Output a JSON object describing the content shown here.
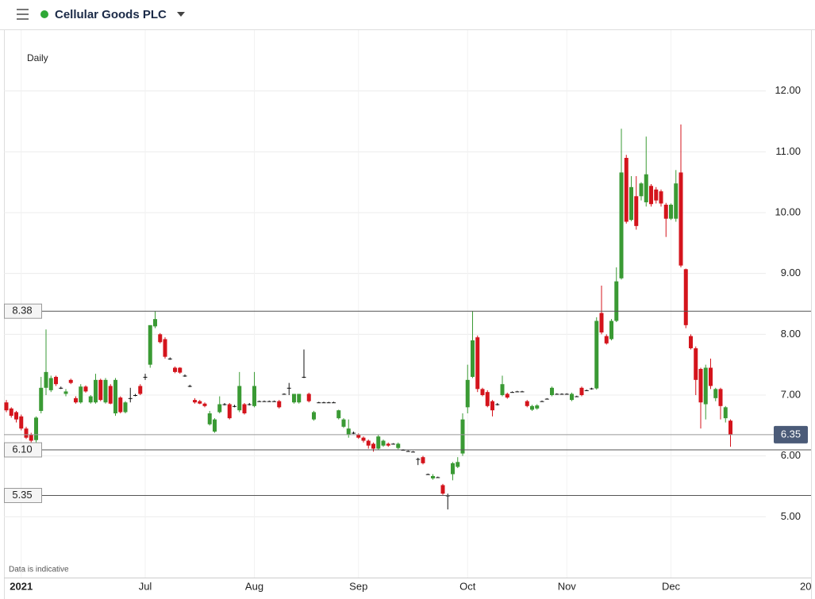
{
  "chart_data": {
    "type": "candlestick",
    "title": "Cellular Goods PLC",
    "interval": "Daily",
    "footnote": "Data is indicative",
    "next_axis_label": "20",
    "ylim": [
      4,
      13
    ],
    "yticks": [
      {
        "value": 5,
        "label": "5.00"
      },
      {
        "value": 6,
        "label": "6.00"
      },
      {
        "value": 7,
        "label": "7.00"
      },
      {
        "value": 8,
        "label": "8.00"
      },
      {
        "value": 9,
        "label": "9.00"
      },
      {
        "value": 10,
        "label": "10.00"
      },
      {
        "value": 11,
        "label": "11.00"
      },
      {
        "value": 12,
        "label": "12.00"
      }
    ],
    "grid": true,
    "up_color": "#3a9a34",
    "down_color": "#d4141c",
    "flat_color": "#111111",
    "reference_lines": [
      8.38,
      {
        "value": 6.1,
        "label": "6.10"
      },
      5.35
    ],
    "last_price": 6.35,
    "categories": [
      null,
      null,
      null,
      "2021",
      null,
      null,
      null,
      null,
      null,
      null,
      null,
      null,
      null,
      null,
      null,
      null,
      null,
      null,
      null,
      null,
      null,
      null,
      null,
      null,
      null,
      null,
      null,
      null,
      "Jul",
      null,
      null,
      null,
      null,
      null,
      null,
      null,
      null,
      null,
      null,
      null,
      null,
      null,
      null,
      null,
      null,
      null,
      null,
      null,
      null,
      null,
      "Aug",
      null,
      null,
      null,
      null,
      null,
      null,
      null,
      null,
      null,
      null,
      null,
      null,
      null,
      null,
      null,
      null,
      null,
      null,
      null,
      null,
      "Sep",
      null,
      null,
      null,
      null,
      null,
      null,
      null,
      null,
      null,
      null,
      null,
      null,
      null,
      null,
      null,
      null,
      null,
      null,
      null,
      null,
      null,
      "Oct",
      null,
      null,
      null,
      null,
      null,
      null,
      null,
      null,
      null,
      null,
      null,
      null,
      null,
      null,
      null,
      null,
      null,
      null,
      null,
      "Nov",
      null,
      null,
      null,
      null,
      null,
      null,
      null,
      null,
      null,
      null,
      null,
      null,
      null,
      null,
      null,
      null,
      null,
      null,
      null,
      null,
      "Dec",
      null,
      null,
      null,
      null,
      null,
      null,
      null,
      null,
      null,
      null,
      null,
      null
    ],
    "ohlc": [
      [
        6.88,
        6.92,
        6.72,
        6.75
      ],
      [
        6.78,
        6.8,
        6.63,
        6.66
      ],
      [
        6.72,
        6.74,
        6.55,
        6.6
      ],
      [
        6.65,
        6.68,
        6.42,
        6.45
      ],
      [
        6.45,
        6.48,
        6.28,
        6.3
      ],
      [
        6.35,
        6.38,
        6.22,
        6.25
      ],
      [
        6.26,
        6.65,
        6.22,
        6.63
      ],
      [
        6.74,
        7.3,
        6.7,
        7.12
      ],
      [
        7.12,
        8.08,
        7.0,
        7.38
      ],
      [
        7.08,
        7.32,
        7.05,
        7.28
      ],
      [
        7.3,
        7.32,
        7.15,
        7.18
      ],
      [
        7.12,
        7.14,
        7.1,
        7.12
      ],
      [
        7.02,
        7.1,
        6.98,
        7.06
      ],
      [
        7.25,
        7.27,
        7.18,
        7.2
      ],
      [
        6.95,
        6.98,
        6.86,
        6.88
      ],
      [
        6.88,
        7.18,
        6.86,
        7.14
      ],
      [
        7.14,
        7.16,
        7.04,
        7.06
      ],
      [
        6.88,
        7.0,
        6.86,
        6.98
      ],
      [
        6.88,
        7.35,
        6.86,
        7.25
      ],
      [
        7.25,
        7.27,
        6.9,
        6.92
      ],
      [
        6.88,
        7.28,
        6.86,
        7.25
      ],
      [
        7.15,
        7.18,
        6.85,
        6.86
      ],
      [
        6.7,
        7.28,
        6.66,
        7.25
      ],
      [
        6.96,
        6.98,
        6.7,
        6.72
      ],
      [
        6.72,
        6.9,
        6.7,
        6.88
      ],
      [
        6.95,
        7.12,
        6.88,
        6.95
      ],
      [
        7.0,
        7.02,
        6.98,
        7.0
      ],
      [
        7.15,
        7.18,
        7.0,
        7.02
      ],
      [
        7.3,
        7.35,
        7.25,
        7.3
      ],
      [
        7.5,
        8.15,
        7.45,
        8.15
      ],
      [
        8.13,
        8.38,
        8.1,
        8.25
      ],
      [
        8.0,
        8.02,
        7.85,
        7.87
      ],
      [
        7.92,
        7.95,
        7.6,
        7.63
      ],
      [
        7.6,
        7.62,
        7.58,
        7.6
      ],
      [
        7.45,
        7.47,
        7.36,
        7.38
      ],
      [
        7.45,
        7.46,
        7.35,
        7.37
      ],
      [
        7.32,
        7.34,
        7.3,
        7.32
      ],
      [
        7.15,
        7.17,
        7.13,
        7.15
      ],
      [
        6.92,
        6.95,
        6.86,
        6.88
      ],
      [
        6.9,
        6.92,
        6.85,
        6.86
      ],
      [
        6.86,
        6.88,
        6.8,
        6.82
      ],
      [
        6.52,
        6.74,
        6.5,
        6.7
      ],
      [
        6.4,
        6.62,
        6.38,
        6.6
      ],
      [
        6.72,
        6.98,
        6.7,
        6.85
      ],
      [
        6.85,
        6.87,
        6.83,
        6.85
      ],
      [
        6.85,
        6.87,
        6.6,
        6.62
      ],
      [
        6.82,
        6.84,
        6.8,
        6.82
      ],
      [
        6.75,
        7.38,
        6.72,
        7.15
      ],
      [
        6.85,
        6.87,
        6.68,
        6.7
      ],
      [
        6.85,
        6.87,
        6.83,
        6.85
      ],
      [
        6.82,
        7.38,
        6.8,
        7.15
      ],
      [
        6.9,
        6.91,
        6.89,
        6.9
      ],
      [
        6.9,
        6.91,
        6.89,
        6.9
      ],
      [
        6.9,
        6.91,
        6.89,
        6.9
      ],
      [
        6.9,
        6.91,
        6.89,
        6.9
      ],
      [
        6.9,
        6.92,
        6.78,
        6.8
      ],
      [
        7.02,
        7.03,
        7.01,
        7.02
      ],
      [
        7.12,
        7.2,
        7.0,
        7.12
      ],
      [
        6.88,
        7.02,
        6.86,
        7.02
      ],
      [
        6.88,
        7.02,
        6.86,
        7.02
      ],
      [
        7.3,
        7.75,
        7.28,
        7.3
      ],
      [
        7.02,
        7.04,
        6.88,
        6.9
      ],
      [
        6.6,
        6.74,
        6.58,
        6.72
      ],
      [
        6.88,
        6.89,
        6.87,
        6.88
      ],
      [
        6.88,
        6.89,
        6.87,
        6.88
      ],
      [
        6.88,
        6.89,
        6.87,
        6.88
      ],
      [
        6.88,
        6.89,
        6.87,
        6.88
      ],
      [
        6.62,
        6.76,
        6.6,
        6.75
      ],
      [
        6.48,
        6.62,
        6.46,
        6.6
      ],
      [
        6.35,
        6.6,
        6.3,
        6.45
      ],
      [
        6.38,
        6.4,
        6.36,
        6.38
      ],
      [
        6.35,
        6.37,
        6.28,
        6.3
      ],
      [
        6.3,
        6.32,
        6.22,
        6.25
      ],
      [
        6.25,
        6.27,
        6.12,
        6.17
      ],
      [
        6.2,
        6.22,
        6.07,
        6.12
      ],
      [
        6.12,
        6.35,
        6.1,
        6.32
      ],
      [
        6.17,
        6.27,
        6.15,
        6.25
      ],
      [
        6.2,
        6.22,
        6.15,
        6.17
      ],
      [
        6.2,
        6.21,
        6.19,
        6.2
      ],
      [
        6.13,
        6.22,
        6.11,
        6.2
      ],
      [
        6.1,
        6.11,
        6.09,
        6.1
      ],
      [
        6.08,
        6.09,
        6.07,
        6.08
      ],
      [
        6.07,
        6.08,
        6.06,
        6.07
      ],
      [
        5.95,
        5.97,
        5.85,
        5.95
      ],
      [
        5.98,
        6.0,
        5.86,
        5.88
      ],
      [
        5.7,
        5.71,
        5.69,
        5.7
      ],
      [
        5.63,
        5.7,
        5.61,
        5.67
      ],
      [
        5.65,
        5.66,
        5.64,
        5.65
      ],
      [
        5.52,
        5.54,
        5.36,
        5.38
      ],
      [
        5.35,
        5.38,
        5.12,
        5.35
      ],
      [
        5.7,
        5.9,
        5.6,
        5.88
      ],
      [
        5.82,
        5.98,
        5.8,
        5.9
      ],
      [
        6.04,
        6.7,
        6.0,
        6.6
      ],
      [
        6.8,
        7.5,
        6.7,
        7.25
      ],
      [
        7.3,
        8.38,
        7.28,
        7.9
      ],
      [
        7.95,
        7.98,
        7.05,
        7.1
      ],
      [
        7.1,
        7.12,
        6.98,
        7.0
      ],
      [
        7.05,
        7.08,
        6.8,
        6.82
      ],
      [
        6.9,
        6.92,
        6.65,
        6.75
      ],
      [
        6.85,
        6.87,
        6.83,
        6.85
      ],
      [
        7.0,
        7.32,
        6.98,
        7.18
      ],
      [
        7.02,
        7.04,
        6.94,
        6.96
      ],
      [
        7.05,
        7.06,
        7.04,
        7.05
      ],
      [
        7.06,
        7.07,
        7.05,
        7.06
      ],
      [
        7.06,
        7.07,
        7.05,
        7.06
      ],
      [
        6.9,
        6.92,
        6.8,
        6.82
      ],
      [
        6.76,
        6.84,
        6.74,
        6.82
      ],
      [
        6.78,
        6.85,
        6.76,
        6.83
      ],
      [
        6.9,
        6.91,
        6.89,
        6.9
      ],
      [
        6.94,
        6.95,
        6.93,
        6.94
      ],
      [
        7.0,
        7.14,
        6.98,
        7.12
      ],
      [
        7.02,
        7.03,
        7.01,
        7.02
      ],
      [
        7.02,
        7.03,
        7.01,
        7.02
      ],
      [
        7.02,
        7.03,
        7.01,
        7.02
      ],
      [
        6.92,
        7.04,
        6.9,
        7.02
      ],
      [
        6.98,
        6.99,
        6.97,
        6.98
      ],
      [
        7.12,
        7.14,
        6.98,
        7.0
      ],
      [
        7.08,
        7.09,
        7.07,
        7.08
      ],
      [
        7.11,
        7.12,
        7.09,
        7.11
      ],
      [
        7.11,
        8.28,
        7.09,
        8.22
      ],
      [
        8.35,
        8.8,
        8.0,
        8.03
      ],
      [
        7.97,
        8.0,
        7.83,
        7.85
      ],
      [
        7.92,
        8.25,
        7.9,
        8.22
      ],
      [
        8.22,
        9.1,
        8.2,
        8.87
      ],
      [
        8.92,
        11.38,
        8.9,
        10.66
      ],
      [
        10.9,
        10.95,
        9.82,
        9.85
      ],
      [
        9.88,
        10.6,
        9.86,
        10.42
      ],
      [
        10.27,
        10.6,
        9.72,
        9.78
      ],
      [
        10.27,
        10.5,
        10.2,
        10.48
      ],
      [
        10.17,
        11.25,
        10.1,
        10.63
      ],
      [
        10.44,
        10.47,
        10.1,
        10.14
      ],
      [
        10.38,
        10.42,
        10.15,
        10.2
      ],
      [
        10.35,
        10.38,
        10.1,
        10.15
      ],
      [
        10.13,
        10.16,
        9.6,
        9.9
      ],
      [
        9.9,
        10.15,
        9.88,
        10.13
      ],
      [
        9.9,
        10.7,
        9.85,
        10.48
      ],
      [
        10.66,
        11.45,
        9.1,
        9.13
      ],
      [
        9.07,
        9.08,
        8.1,
        8.15
      ],
      [
        7.97,
        8.0,
        7.75,
        7.77
      ],
      [
        7.77,
        7.8,
        7.0,
        7.25
      ],
      [
        7.43,
        7.45,
        6.45,
        6.88
      ],
      [
        6.85,
        7.5,
        6.6,
        7.45
      ],
      [
        7.45,
        7.6,
        7.1,
        7.15
      ],
      [
        6.95,
        7.12,
        6.9,
        7.1
      ],
      [
        7.1,
        7.12,
        6.6,
        6.82
      ],
      [
        6.62,
        6.82,
        6.55,
        6.8
      ],
      [
        6.58,
        6.6,
        6.15,
        6.35
      ]
    ]
  }
}
